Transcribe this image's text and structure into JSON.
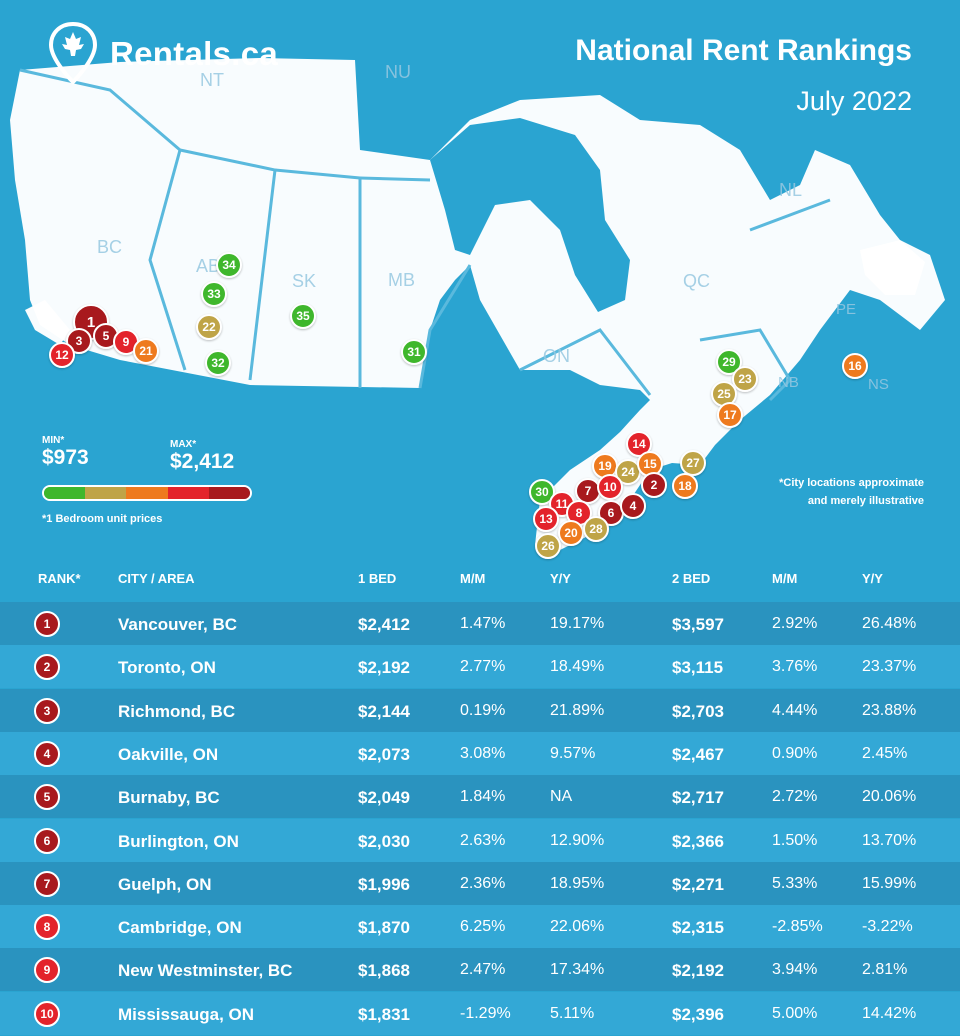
{
  "brand": {
    "name": "Rentals.ca"
  },
  "header": {
    "title": "National Rent Rankings",
    "subtitle": "July 2022"
  },
  "provinces": [
    {
      "code": "NT"
    },
    {
      "code": "NU"
    },
    {
      "code": "BC"
    },
    {
      "code": "AB"
    },
    {
      "code": "SK"
    },
    {
      "code": "MB"
    },
    {
      "code": "ON"
    },
    {
      "code": "QC"
    },
    {
      "code": "NL"
    },
    {
      "code": "PE"
    },
    {
      "code": "NB"
    },
    {
      "code": "NS"
    }
  ],
  "colors": {
    "background": "#2aa4d1",
    "land": "#ffffff",
    "green": "#3fb72c",
    "olive": "#bfa447",
    "orange": "#ee7a1e",
    "red": "#e3232b",
    "darkred": "#a8191d",
    "row_dark": "#2a93bf",
    "row_light": "#33a8d6"
  },
  "markers": [
    {
      "rank": "1",
      "color": "darkred"
    },
    {
      "rank": "3",
      "color": "darkred"
    },
    {
      "rank": "5",
      "color": "darkred"
    },
    {
      "rank": "9",
      "color": "red"
    },
    {
      "rank": "12",
      "color": "red"
    },
    {
      "rank": "21",
      "color": "orange"
    },
    {
      "rank": "34",
      "color": "green"
    },
    {
      "rank": "33",
      "color": "green"
    },
    {
      "rank": "22",
      "color": "olive"
    },
    {
      "rank": "32",
      "color": "green"
    },
    {
      "rank": "35",
      "color": "green"
    },
    {
      "rank": "31",
      "color": "green"
    },
    {
      "rank": "29",
      "color": "green"
    },
    {
      "rank": "23",
      "color": "olive"
    },
    {
      "rank": "25",
      "color": "olive"
    },
    {
      "rank": "17",
      "color": "orange"
    },
    {
      "rank": "16",
      "color": "orange"
    },
    {
      "rank": "14",
      "color": "red"
    },
    {
      "rank": "19",
      "color": "orange"
    },
    {
      "rank": "24",
      "color": "olive"
    },
    {
      "rank": "15",
      "color": "orange"
    },
    {
      "rank": "27",
      "color": "olive"
    },
    {
      "rank": "2",
      "color": "darkred"
    },
    {
      "rank": "18",
      "color": "orange"
    },
    {
      "rank": "30",
      "color": "green"
    },
    {
      "rank": "7",
      "color": "darkred"
    },
    {
      "rank": "10",
      "color": "red"
    },
    {
      "rank": "11",
      "color": "red"
    },
    {
      "rank": "8",
      "color": "red"
    },
    {
      "rank": "6",
      "color": "darkred"
    },
    {
      "rank": "4",
      "color": "darkred"
    },
    {
      "rank": "13",
      "color": "red"
    },
    {
      "rank": "20",
      "color": "orange"
    },
    {
      "rank": "28",
      "color": "olive"
    },
    {
      "rank": "26",
      "color": "olive"
    }
  ],
  "legend": {
    "min_label": "MIN*",
    "min_value": "$973",
    "max_label": "MAX*",
    "max_value": "$2,412",
    "scale": [
      "green",
      "olive",
      "orange",
      "red",
      "darkred"
    ],
    "note": "*1 Bedroom unit prices"
  },
  "disclaimer": [
    "*City locations approximate",
    "and merely illustrative"
  ],
  "table": {
    "headers": {
      "rank": "RANK*",
      "city": "CITY / AREA",
      "bed1": "1 BED",
      "mm1": "M/M",
      "yy1": "Y/Y",
      "bed2": "2 BED",
      "mm2": "M/M",
      "yy2": "Y/Y"
    },
    "rows": [
      {
        "rank": "1",
        "city": "Vancouver, BC",
        "bed1": "$2,412",
        "mm1": "1.47%",
        "yy1": "19.17%",
        "bed2": "$3,597",
        "mm2": "2.92%",
        "yy2": "26.48%",
        "color": "darkred"
      },
      {
        "rank": "2",
        "city": "Toronto, ON",
        "bed1": "$2,192",
        "mm1": "2.77%",
        "yy1": "18.49%",
        "bed2": "$3,115",
        "mm2": "3.76%",
        "yy2": "23.37%",
        "color": "darkred"
      },
      {
        "rank": "3",
        "city": "Richmond, BC",
        "bed1": "$2,144",
        "mm1": "0.19%",
        "yy1": "21.89%",
        "bed2": "$2,703",
        "mm2": "4.44%",
        "yy2": "23.88%",
        "color": "darkred"
      },
      {
        "rank": "4",
        "city": "Oakville, ON",
        "bed1": "$2,073",
        "mm1": "3.08%",
        "yy1": "9.57%",
        "bed2": "$2,467",
        "mm2": "0.90%",
        "yy2": "2.45%",
        "color": "darkred"
      },
      {
        "rank": "5",
        "city": "Burnaby, BC",
        "bed1": "$2,049",
        "mm1": "1.84%",
        "yy1": "NA",
        "bed2": "$2,717",
        "mm2": "2.72%",
        "yy2": "20.06%",
        "color": "darkred"
      },
      {
        "rank": "6",
        "city": "Burlington, ON",
        "bed1": "$2,030",
        "mm1": "2.63%",
        "yy1": "12.90%",
        "bed2": "$2,366",
        "mm2": "1.50%",
        "yy2": "13.70%",
        "color": "darkred"
      },
      {
        "rank": "7",
        "city": "Guelph, ON",
        "bed1": "$1,996",
        "mm1": "2.36%",
        "yy1": "18.95%",
        "bed2": "$2,271",
        "mm2": "5.33%",
        "yy2": "15.99%",
        "color": "darkred"
      },
      {
        "rank": "8",
        "city": "Cambridge, ON",
        "bed1": "$1,870",
        "mm1": "6.25%",
        "yy1": "22.06%",
        "bed2": "$2,315",
        "mm2": "-2.85%",
        "yy2": "-3.22%",
        "color": "red"
      },
      {
        "rank": "9",
        "city": "New Westminster, BC",
        "bed1": "$1,868",
        "mm1": "2.47%",
        "yy1": "17.34%",
        "bed2": "$2,192",
        "mm2": "3.94%",
        "yy2": "2.81%",
        "color": "red"
      },
      {
        "rank": "10",
        "city": "Mississauga, ON",
        "bed1": "$1,831",
        "mm1": "-1.29%",
        "yy1": "5.11%",
        "bed2": "$2,396",
        "mm2": "5.00%",
        "yy2": "14.42%",
        "color": "red"
      }
    ]
  }
}
